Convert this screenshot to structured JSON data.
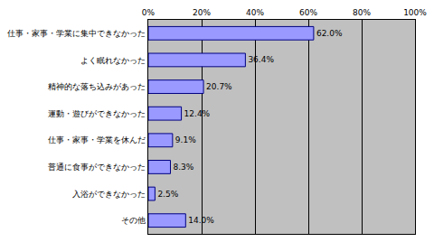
{
  "chart_data": {
    "type": "bar",
    "orientation": "horizontal",
    "categories": [
      "仕事・家事・学業に集中できなかった",
      "よく眠れなかった",
      "精神的な落ち込みがあった",
      "運動・遊びができなかった",
      "仕事・家事・学業を休んだ",
      "普通に食事ができなかった",
      "入浴ができなかった",
      "その他"
    ],
    "values": [
      62.0,
      36.4,
      20.7,
      12.4,
      9.1,
      8.3,
      2.5,
      14.0
    ],
    "value_labels": [
      "62.0%",
      "36.4%",
      "20.7%",
      "12.4%",
      "9.1%",
      "8.3%",
      "2.5%",
      "14.0%"
    ],
    "data_labels": true,
    "color": "#9999ff",
    "xlim": [
      0,
      100
    ],
    "xticks": [
      {
        "value": 0,
        "label": "0%"
      },
      {
        "value": 20,
        "label": "20%"
      },
      {
        "value": 40,
        "label": "40%"
      },
      {
        "value": 60,
        "label": "60%"
      },
      {
        "value": 80,
        "label": "80%"
      },
      {
        "value": 100,
        "label": "100%"
      }
    ],
    "grid": true
  }
}
